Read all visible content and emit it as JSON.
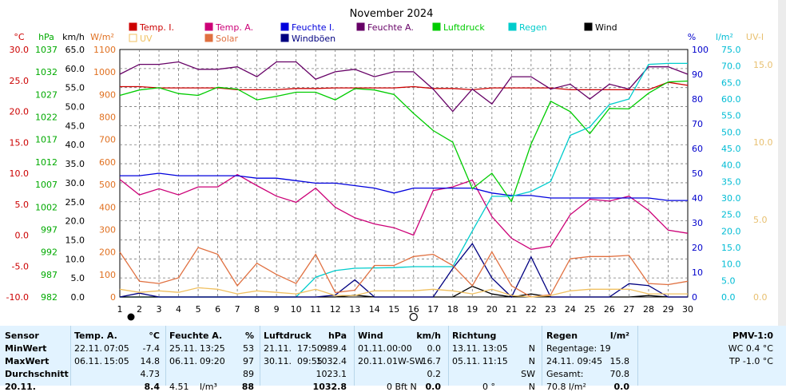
{
  "title": "November 2024",
  "axes_left": [
    {
      "unit": "°C",
      "color": "#cc0000",
      "ticks": [
        "30.0",
        "25.0",
        "20.0",
        "15.0",
        "10.0",
        "5.0",
        "0.0",
        "-5.0",
        "-10.0"
      ]
    },
    {
      "unit": "hPa",
      "color": "#00aa00",
      "ticks": [
        "1037",
        "1032",
        "1027",
        "1022",
        "1017",
        "1012",
        "1007",
        "1002",
        "997",
        "992",
        "987",
        "982"
      ]
    },
    {
      "unit": "km/h",
      "color": "#000000",
      "ticks": [
        "65.0",
        "60.0",
        "55.0",
        "50.0",
        "45.0",
        "40.0",
        "35.0",
        "30.0",
        "25.0",
        "20.0",
        "15.0",
        "10.0",
        "5.0",
        "0.0"
      ]
    },
    {
      "unit": "W/m²",
      "color": "#e07020",
      "ticks": [
        "1100",
        "1000",
        "900",
        "800",
        "700",
        "600",
        "500",
        "400",
        "300",
        "200",
        "100",
        "0"
      ]
    }
  ],
  "axes_right": [
    {
      "unit": "%",
      "color": "#0000cc",
      "ticks": [
        "100",
        "90",
        "80",
        "70",
        "60",
        "50",
        "40",
        "30",
        "20",
        "10",
        "0"
      ]
    },
    {
      "unit": "l/m²",
      "color": "#00bcd4",
      "ticks": [
        "75.0",
        "70.0",
        "65.0",
        "60.0",
        "55.0",
        "50.0",
        "45.0",
        "40.0",
        "35.0",
        "30.0",
        "25.0",
        "20.0",
        "15.0",
        "10.0",
        "5.0",
        "0.0"
      ]
    },
    {
      "unit": "UV-I",
      "color": "#e8c070",
      "ticks": [
        "15.0",
        "10.0",
        "5.0",
        "0.0"
      ]
    }
  ],
  "legend": [
    {
      "label": "Temp. I.",
      "color": "#cc0000"
    },
    {
      "label": "Temp. A.",
      "color": "#cc0077"
    },
    {
      "label": "Feuchte I.",
      "color": "#0000dd"
    },
    {
      "label": "Feuchte A.",
      "color": "#660066"
    },
    {
      "label": "Luftdruck",
      "color": "#00cc00"
    },
    {
      "label": "Regen",
      "color": "#00cccc"
    },
    {
      "label": "Wind",
      "color": "#000000"
    },
    {
      "label": "UV",
      "color": "#f0c060"
    },
    {
      "label": "Solar",
      "color": "#e07040"
    },
    {
      "label": "Windböen",
      "color": "#000080"
    }
  ],
  "chart_data": {
    "type": "line",
    "title": "November 2024",
    "x": [
      1,
      2,
      3,
      4,
      5,
      6,
      7,
      8,
      9,
      10,
      11,
      12,
      13,
      14,
      15,
      16,
      17,
      18,
      19,
      20,
      21,
      22,
      23,
      24,
      25,
      26,
      27,
      28,
      29,
      30
    ],
    "series": [
      {
        "name": "Temp. I.",
        "axis": "°C",
        "color": "#cc0000",
        "values": [
          24.0,
          24.0,
          23.8,
          23.8,
          23.8,
          23.8,
          23.5,
          23.5,
          23.5,
          23.7,
          23.7,
          23.8,
          23.8,
          23.8,
          23.8,
          24.0,
          23.7,
          23.7,
          23.5,
          23.8,
          23.8,
          23.8,
          23.8,
          23.5,
          23.5,
          23.5,
          23.5,
          23.5,
          24.7,
          24.2
        ]
      },
      {
        "name": "Temp. A.",
        "axis": "°C",
        "color": "#cc0077",
        "values": [
          9.0,
          6.5,
          7.5,
          6.5,
          7.8,
          7.8,
          9.8,
          8.0,
          6.3,
          5.3,
          7.6,
          4.5,
          2.8,
          1.8,
          1.2,
          0.0,
          7.2,
          7.8,
          8.9,
          3.0,
          -0.5,
          -2.3,
          -1.8,
          3.3,
          5.8,
          5.5,
          6.3,
          4.0,
          0.8,
          0.3
        ]
      },
      {
        "name": "Feuchte I.",
        "axis": "%",
        "color": "#0000dd",
        "values": [
          49,
          49,
          50,
          49,
          49,
          49,
          49,
          48,
          48,
          47,
          46,
          46,
          45,
          44,
          42,
          44,
          44,
          44,
          44,
          42,
          41,
          41,
          40,
          40,
          40,
          40,
          40,
          40,
          39,
          39
        ]
      },
      {
        "name": "Feuchte A.",
        "axis": "%",
        "color": "#660066",
        "values": [
          90,
          94,
          94,
          95,
          92,
          92,
          93,
          89,
          95,
          95,
          88,
          91,
          92,
          89,
          91,
          91,
          84,
          75,
          84,
          78,
          89,
          89,
          84,
          86,
          80,
          86,
          84,
          93,
          93,
          90
        ]
      },
      {
        "name": "Luftdruck",
        "axis": "hPa",
        "color": "#00cc00",
        "values": [
          1026.8,
          1028.0,
          1028.5,
          1027.2,
          1026.8,
          1028.6,
          1028.2,
          1025.8,
          1026.6,
          1027.5,
          1027.5,
          1025.8,
          1028.3,
          1028.0,
          1027.0,
          1022.8,
          1019.0,
          1016.4,
          1006.1,
          1009.5,
          1003.2,
          1016.0,
          1025.5,
          1023.2,
          1018.3,
          1023.9,
          1023.8,
          1027.3,
          1029.8,
          1030.0
        ]
      },
      {
        "name": "Regen",
        "axis": "l/m²",
        "color": "#00cccc",
        "values": [
          0.0,
          0.0,
          0.0,
          0.0,
          0.0,
          0.0,
          0.0,
          0.0,
          0.0,
          0.0,
          6.0,
          8.0,
          8.7,
          8.8,
          8.9,
          9.2,
          9.2,
          9.2,
          20.0,
          30.5,
          30.5,
          32.0,
          35.0,
          49.0,
          51.5,
          58.3,
          60.0,
          70.5,
          70.8,
          70.8
        ]
      },
      {
        "name": "Wind",
        "axis": "km/h",
        "color": "#000000",
        "values": [
          0.0,
          0.0,
          0.0,
          0.0,
          0.0,
          0.0,
          0.0,
          0.0,
          0.0,
          0.0,
          0.0,
          0.0,
          0.5,
          0.0,
          0.0,
          0.0,
          0.0,
          0.0,
          2.8,
          0.8,
          0.0,
          0.8,
          0.0,
          0.0,
          0.0,
          0.0,
          0.0,
          0.4,
          0.0,
          0.0
        ]
      },
      {
        "name": "Windböen",
        "axis": "km/h",
        "color": "#000080",
        "values": [
          0.0,
          1.0,
          0.0,
          0.0,
          0.0,
          0.0,
          0.0,
          0.0,
          0.0,
          0.0,
          0.0,
          0.5,
          4.5,
          0.0,
          0.0,
          0.0,
          0.0,
          7.5,
          14.0,
          5.0,
          0.0,
          10.5,
          0.0,
          0.0,
          0.0,
          0.0,
          3.5,
          3.0,
          0.0,
          0.0
        ]
      },
      {
        "name": "Solar",
        "axis": "W/m²",
        "color": "#e07040",
        "values": [
          200,
          70,
          60,
          85,
          220,
          190,
          50,
          150,
          100,
          60,
          190,
          20,
          30,
          140,
          140,
          180,
          190,
          140,
          50,
          200,
          50,
          0,
          10,
          170,
          180,
          180,
          185,
          60,
          55,
          70
        ]
      },
      {
        "name": "UV",
        "axis": "UV-I",
        "color": "#f0c060",
        "values": [
          0.5,
          0.3,
          0.4,
          0.3,
          0.6,
          0.5,
          0.2,
          0.4,
          0.3,
          0.2,
          0.5,
          0.1,
          0.1,
          0.4,
          0.4,
          0.4,
          0.5,
          0.4,
          0.2,
          0.5,
          0.1,
          0.0,
          0.1,
          0.4,
          0.5,
          0.5,
          0.5,
          0.2,
          0.2,
          0.2
        ]
      }
    ],
    "ranges": {
      "°C": [
        -10,
        30
      ],
      "hPa": [
        982,
        1037
      ],
      "km/h": [
        0,
        65
      ],
      "W/m²": [
        0,
        1100
      ],
      "%": [
        0,
        100
      ],
      "l/m²": [
        0,
        75
      ],
      "UV-I": [
        0,
        15
      ]
    },
    "grid": true,
    "legend_position": "top"
  },
  "table": {
    "sensor": {
      "header": "Sensor",
      "rows": [
        "MinWert",
        "MaxWert",
        "Durchschnitt",
        "20.11."
      ]
    },
    "temp": {
      "header": "Temp. A.",
      "unit": "°C",
      "rows": [
        [
          "22.11.",
          "07:05",
          "-7.4"
        ],
        [
          "06.11.",
          "15:05",
          "14.8"
        ],
        [
          "",
          "",
          "4.73"
        ],
        [
          "",
          "",
          "8.4"
        ]
      ]
    },
    "feuchte": {
      "header": "Feuchte A.",
      "unit": "%",
      "rows": [
        [
          "25.11.",
          "13:25",
          "53"
        ],
        [
          "06.11.",
          "09:20",
          "97"
        ],
        [
          "",
          "",
          "89"
        ],
        [
          "4.51",
          "l/m³",
          "88"
        ]
      ]
    },
    "luftdruck": {
      "header": "Luftdruck",
      "unit": "hPa",
      "rows": [
        [
          "21.11.",
          "17:50",
          "989.4"
        ],
        [
          "30.11.",
          "09:55",
          "1032.4"
        ],
        [
          "",
          "",
          "1023.1"
        ],
        [
          "",
          "",
          "1032.8"
        ]
      ]
    },
    "wind": {
      "header": "Wind",
      "unit": "km/h",
      "rows": [
        [
          "01.11.",
          "00:00",
          "0.0"
        ],
        [
          "20.11.",
          "01W-SW",
          "16.7"
        ],
        [
          "",
          "",
          "0.2"
        ],
        [
          "",
          "0 Bft N",
          "0.0"
        ]
      ]
    },
    "richtung": {
      "header": "Richtung",
      "rows": [
        [
          "13.11.",
          "13:05",
          "N"
        ],
        [
          "05.11.",
          "11:15",
          "N"
        ],
        [
          "",
          "",
          "SW"
        ],
        [
          "",
          "0 °",
          "N"
        ]
      ]
    },
    "regen": {
      "header": "Regen",
      "unit": "l/m²",
      "rows": [
        [
          "Regentage: 19",
          ""
        ],
        [
          "24.11.   09:45",
          "15.8"
        ],
        [
          "Gesamt:",
          "70.8"
        ],
        [
          "70.8 l/m²",
          "0.0"
        ]
      ]
    },
    "pmv": {
      "header": "PMV-1:0",
      "rows": [
        "WC 0.4 °C",
        "TP -1.0 °C"
      ]
    }
  },
  "markers": {
    "full_moon_day": "1",
    "new_moon_day": "16"
  }
}
